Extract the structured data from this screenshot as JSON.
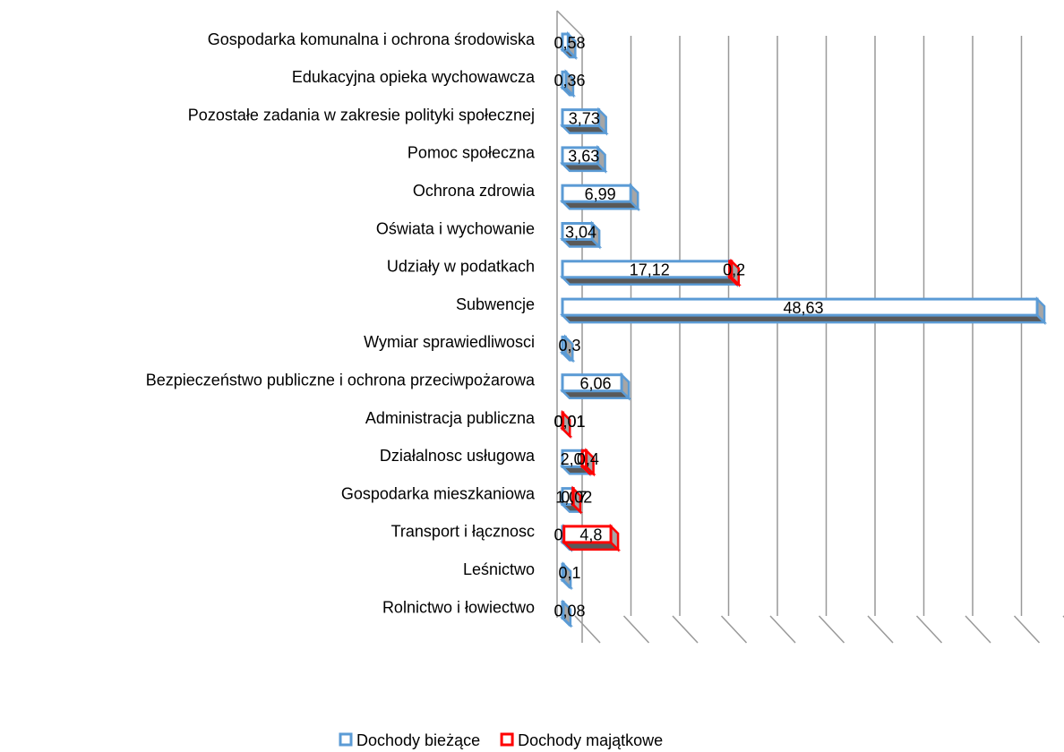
{
  "chart_data": {
    "type": "bar3d_stacked_horizontal",
    "categories": [
      "Gospodarka komunalna i ochrona środowiska",
      "Edukacyjna opieka wychowawcza",
      "Pozostałe zadania w zakresie polityki społecznej",
      "Pomoc społeczna",
      "Ochrona zdrowia",
      "Oświata i wychowanie",
      "Udziały w podatkach",
      "Subwencje",
      "Wymiar sprawiedliwosci",
      "Bezpieczeństwo publiczne i ochrona przeciwpożarowa",
      "Administracja publiczna",
      "Działalnosc usługowa",
      "Gospodarka mieszkaniowa",
      "Transport i łącznosc",
      "Leśnictwo",
      "Rolnictwo i łowiectwo"
    ],
    "series": [
      {
        "name": "Dochody bieżące",
        "color": "#5b9bd5",
        "values": [
          0.58,
          0.36,
          3.73,
          3.63,
          6.99,
          3.04,
          17.12,
          48.63,
          0.3,
          6.06,
          0.01,
          2.04,
          1.07,
          0.16,
          0.1,
          0.08
        ],
        "value_labels": [
          "0,58",
          "0,36",
          "3,73",
          "3,63",
          "6,99",
          "3,04",
          "17,12",
          "48,63",
          "0,3",
          "6,06",
          "0,01",
          "2,04",
          "1,07",
          "0,16",
          "0,1",
          "0,08"
        ]
      },
      {
        "name": "Dochody majątkowe",
        "color": "#ff0000",
        "values": [
          null,
          null,
          null,
          null,
          null,
          null,
          0.2,
          null,
          null,
          null,
          0.01,
          0.4,
          0.02,
          4.8,
          null,
          null
        ],
        "value_labels": [
          null,
          null,
          null,
          null,
          null,
          null,
          "0,2",
          null,
          null,
          null,
          "0,01",
          "0,4",
          "0,02",
          "4,8",
          null,
          null
        ]
      }
    ],
    "xlim": [
      0,
      50
    ],
    "xticks": [
      0,
      5,
      10,
      15,
      20,
      25,
      30,
      35,
      40,
      45,
      50
    ],
    "grid": true,
    "legend": "bottom"
  }
}
